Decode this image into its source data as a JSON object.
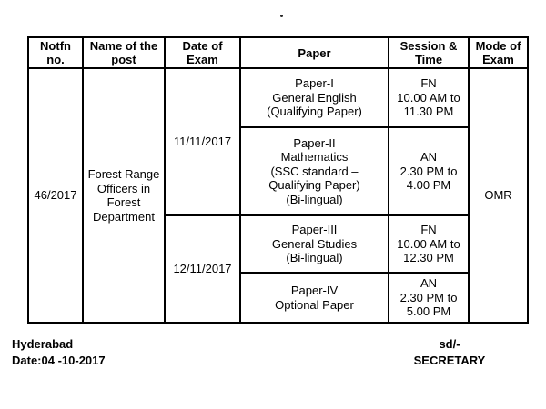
{
  "page": {
    "top_dot": "."
  },
  "table": {
    "headers": [
      [
        "Notfn",
        "no."
      ],
      [
        "Name of the",
        "post"
      ],
      [
        "Date of",
        "Exam"
      ],
      [
        "Paper"
      ],
      [
        "Session &",
        "Time"
      ],
      [
        "Mode of",
        "Exam"
      ]
    ],
    "notfn_no": "46/2017",
    "post_name": [
      "Forest Range",
      "Officers in",
      "Forest",
      "Department"
    ],
    "mode": "OMR",
    "groups": [
      {
        "date": "11/11/2017",
        "rows": [
          {
            "paper": [
              "Paper-I",
              "General English",
              "(Qualifying Paper)"
            ],
            "session": [
              "FN",
              "10.00 AM to",
              "11.30 PM"
            ]
          },
          {
            "paper": [
              "Paper-II",
              "Mathematics",
              "(SSC standard –",
              "Qualifying Paper)",
              "(Bi-lingual)"
            ],
            "session": [
              "AN",
              "2.30 PM to",
              "4.00 PM"
            ]
          }
        ]
      },
      {
        "date": "12/11/2017",
        "rows": [
          {
            "paper": [
              "Paper-III",
              "General Studies",
              "(Bi-lingual)"
            ],
            "session": [
              "FN",
              "10.00 AM to",
              "12.30 PM"
            ]
          },
          {
            "paper": [
              "Paper-IV",
              "Optional Paper"
            ],
            "session": [
              "AN",
              "2.30 PM to",
              "5.00 PM"
            ]
          }
        ]
      }
    ]
  },
  "footer": {
    "place": "Hyderabad",
    "date_line": "Date:04 -10-2017",
    "signature": "sd/-",
    "designation": "SECRETARY"
  }
}
